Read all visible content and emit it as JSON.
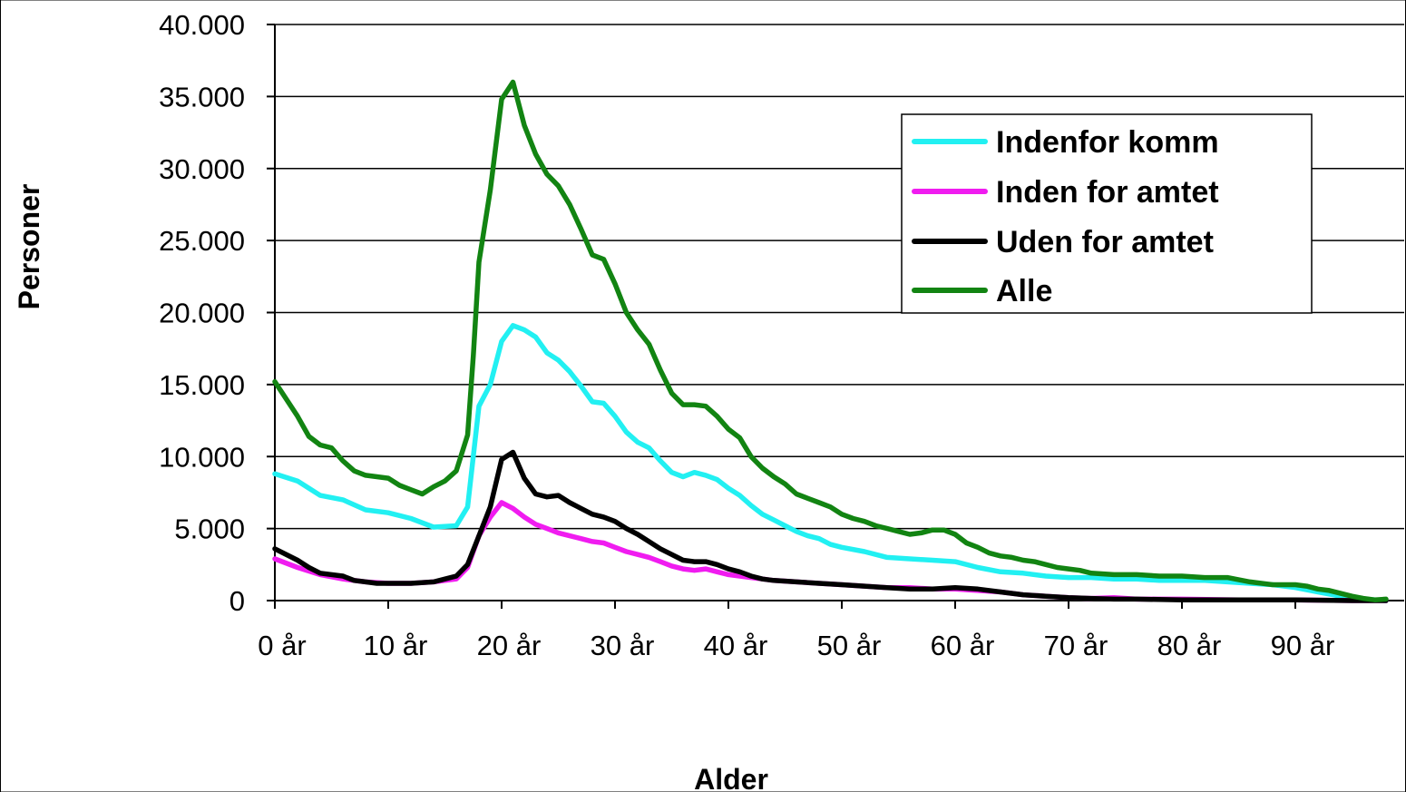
{
  "chart_data": {
    "type": "line",
    "xlabel": "Alder",
    "ylabel": "Personer",
    "ylim": [
      0,
      40000
    ],
    "xlim": [
      0,
      99
    ],
    "x_tick_values": [
      0,
      10,
      20,
      30,
      40,
      50,
      60,
      70,
      80,
      90
    ],
    "x_tick_labels": [
      "0 år",
      "10 år",
      "20 år",
      "30 år",
      "40 år",
      "50 år",
      "60 år",
      "70 år",
      "80 år",
      "90 år"
    ],
    "y_tick_values": [
      0,
      5000,
      10000,
      15000,
      20000,
      25000,
      30000,
      35000,
      40000
    ],
    "y_tick_labels": [
      "0",
      "5.000",
      "10.000",
      "15.000",
      "20.000",
      "25.000",
      "30.000",
      "35.000",
      "40.000"
    ],
    "grid": "horizontal",
    "legend_position": "top-right",
    "series": [
      {
        "name": "Indenfor komm",
        "color": "#22f0f2",
        "points": [
          [
            0,
            8800
          ],
          [
            2,
            8300
          ],
          [
            4,
            7300
          ],
          [
            6,
            7000
          ],
          [
            8,
            6300
          ],
          [
            10,
            6100
          ],
          [
            12,
            5700
          ],
          [
            14,
            5100
          ],
          [
            16,
            5200
          ],
          [
            17,
            6500
          ],
          [
            18,
            13500
          ],
          [
            19,
            15000
          ],
          [
            20,
            18000
          ],
          [
            21,
            19100
          ],
          [
            22,
            18800
          ],
          [
            23,
            18300
          ],
          [
            24,
            17200
          ],
          [
            25,
            16700
          ],
          [
            26,
            15900
          ],
          [
            27,
            14900
          ],
          [
            28,
            13800
          ],
          [
            29,
            13700
          ],
          [
            30,
            12800
          ],
          [
            31,
            11700
          ],
          [
            32,
            11000
          ],
          [
            33,
            10600
          ],
          [
            34,
            9700
          ],
          [
            35,
            8900
          ],
          [
            36,
            8600
          ],
          [
            37,
            8900
          ],
          [
            38,
            8700
          ],
          [
            39,
            8400
          ],
          [
            40,
            7800
          ],
          [
            41,
            7300
          ],
          [
            42,
            6600
          ],
          [
            43,
            6000
          ],
          [
            44,
            5600
          ],
          [
            45,
            5200
          ],
          [
            46,
            4800
          ],
          [
            47,
            4500
          ],
          [
            48,
            4300
          ],
          [
            49,
            3900
          ],
          [
            50,
            3700
          ],
          [
            52,
            3400
          ],
          [
            54,
            3000
          ],
          [
            56,
            2900
          ],
          [
            58,
            2800
          ],
          [
            60,
            2700
          ],
          [
            62,
            2300
          ],
          [
            64,
            2000
          ],
          [
            66,
            1900
          ],
          [
            68,
            1700
          ],
          [
            70,
            1600
          ],
          [
            72,
            1600
          ],
          [
            74,
            1500
          ],
          [
            76,
            1500
          ],
          [
            78,
            1400
          ],
          [
            80,
            1400
          ],
          [
            82,
            1400
          ],
          [
            84,
            1300
          ],
          [
            86,
            1200
          ],
          [
            88,
            1100
          ],
          [
            90,
            900
          ],
          [
            92,
            600
          ],
          [
            94,
            300
          ],
          [
            96,
            100
          ],
          [
            98,
            0
          ]
        ]
      },
      {
        "name": "Inden for amtet",
        "color": "#f01cf0",
        "points": [
          [
            0,
            2900
          ],
          [
            2,
            2300
          ],
          [
            4,
            1800
          ],
          [
            6,
            1500
          ],
          [
            8,
            1300
          ],
          [
            10,
            1200
          ],
          [
            12,
            1200
          ],
          [
            14,
            1300
          ],
          [
            16,
            1500
          ],
          [
            17,
            2300
          ],
          [
            18,
            4500
          ],
          [
            19,
            5800
          ],
          [
            20,
            6800
          ],
          [
            21,
            6400
          ],
          [
            22,
            5800
          ],
          [
            23,
            5300
          ],
          [
            24,
            5000
          ],
          [
            25,
            4700
          ],
          [
            26,
            4500
          ],
          [
            27,
            4300
          ],
          [
            28,
            4100
          ],
          [
            29,
            4000
          ],
          [
            30,
            3700
          ],
          [
            31,
            3400
          ],
          [
            32,
            3200
          ],
          [
            33,
            3000
          ],
          [
            34,
            2700
          ],
          [
            35,
            2400
          ],
          [
            36,
            2200
          ],
          [
            37,
            2100
          ],
          [
            38,
            2200
          ],
          [
            39,
            2000
          ],
          [
            40,
            1800
          ],
          [
            41,
            1700
          ],
          [
            42,
            1600
          ],
          [
            43,
            1500
          ],
          [
            44,
            1400
          ],
          [
            46,
            1300
          ],
          [
            48,
            1200
          ],
          [
            50,
            1100
          ],
          [
            52,
            1000
          ],
          [
            54,
            900
          ],
          [
            56,
            900
          ],
          [
            58,
            800
          ],
          [
            60,
            800
          ],
          [
            62,
            700
          ],
          [
            64,
            600
          ],
          [
            66,
            400
          ],
          [
            68,
            300
          ],
          [
            70,
            200
          ],
          [
            72,
            150
          ],
          [
            74,
            200
          ],
          [
            76,
            100
          ],
          [
            78,
            100
          ],
          [
            80,
            100
          ],
          [
            85,
            50
          ],
          [
            90,
            50
          ],
          [
            95,
            0
          ],
          [
            98,
            0
          ]
        ]
      },
      {
        "name": "Uden for amtet",
        "color": "#000000",
        "points": [
          [
            0,
            3600
          ],
          [
            2,
            2800
          ],
          [
            3,
            2300
          ],
          [
            4,
            1900
          ],
          [
            6,
            1700
          ],
          [
            7,
            1400
          ],
          [
            8,
            1300
          ],
          [
            9,
            1200
          ],
          [
            10,
            1200
          ],
          [
            12,
            1200
          ],
          [
            14,
            1300
          ],
          [
            16,
            1700
          ],
          [
            17,
            2500
          ],
          [
            18,
            4500
          ],
          [
            19,
            6500
          ],
          [
            20,
            9800
          ],
          [
            21,
            10300
          ],
          [
            22,
            8500
          ],
          [
            23,
            7400
          ],
          [
            24,
            7200
          ],
          [
            25,
            7300
          ],
          [
            26,
            6800
          ],
          [
            27,
            6400
          ],
          [
            28,
            6000
          ],
          [
            29,
            5800
          ],
          [
            30,
            5500
          ],
          [
            31,
            5000
          ],
          [
            32,
            4600
          ],
          [
            33,
            4100
          ],
          [
            34,
            3600
          ],
          [
            35,
            3200
          ],
          [
            36,
            2800
          ],
          [
            37,
            2700
          ],
          [
            38,
            2700
          ],
          [
            39,
            2500
          ],
          [
            40,
            2200
          ],
          [
            41,
            2000
          ],
          [
            42,
            1700
          ],
          [
            43,
            1500
          ],
          [
            44,
            1400
          ],
          [
            46,
            1300
          ],
          [
            48,
            1200
          ],
          [
            50,
            1100
          ],
          [
            52,
            1000
          ],
          [
            54,
            900
          ],
          [
            56,
            800
          ],
          [
            58,
            800
          ],
          [
            60,
            900
          ],
          [
            62,
            800
          ],
          [
            64,
            600
          ],
          [
            66,
            400
          ],
          [
            68,
            300
          ],
          [
            70,
            200
          ],
          [
            72,
            150
          ],
          [
            74,
            100
          ],
          [
            76,
            100
          ],
          [
            80,
            50
          ],
          [
            85,
            50
          ],
          [
            90,
            50
          ],
          [
            95,
            0
          ],
          [
            98,
            0
          ]
        ]
      },
      {
        "name": "Alle",
        "color": "#128412",
        "points": [
          [
            0,
            15200
          ],
          [
            1,
            14000
          ],
          [
            2,
            12800
          ],
          [
            3,
            11400
          ],
          [
            4,
            10800
          ],
          [
            5,
            10600
          ],
          [
            6,
            9700
          ],
          [
            7,
            9000
          ],
          [
            8,
            8700
          ],
          [
            9,
            8600
          ],
          [
            10,
            8500
          ],
          [
            11,
            8000
          ],
          [
            12,
            7700
          ],
          [
            13,
            7400
          ],
          [
            14,
            7900
          ],
          [
            15,
            8300
          ],
          [
            16,
            9000
          ],
          [
            17,
            11500
          ],
          [
            17.5,
            17000
          ],
          [
            18,
            23500
          ],
          [
            19,
            28500
          ],
          [
            20,
            34800
          ],
          [
            21,
            36000
          ],
          [
            22,
            33000
          ],
          [
            23,
            31000
          ],
          [
            24,
            29600
          ],
          [
            25,
            28800
          ],
          [
            26,
            27500
          ],
          [
            27,
            25800
          ],
          [
            28,
            24000
          ],
          [
            29,
            23700
          ],
          [
            30,
            22000
          ],
          [
            31,
            20000
          ],
          [
            32,
            18800
          ],
          [
            33,
            17800
          ],
          [
            34,
            16000
          ],
          [
            35,
            14400
          ],
          [
            36,
            13600
          ],
          [
            37,
            13600
          ],
          [
            38,
            13500
          ],
          [
            39,
            12800
          ],
          [
            40,
            11900
          ],
          [
            41,
            11300
          ],
          [
            42,
            10000
          ],
          [
            43,
            9200
          ],
          [
            44,
            8600
          ],
          [
            45,
            8100
          ],
          [
            46,
            7400
          ],
          [
            47,
            7100
          ],
          [
            48,
            6800
          ],
          [
            49,
            6500
          ],
          [
            50,
            6000
          ],
          [
            51,
            5700
          ],
          [
            52,
            5500
          ],
          [
            53,
            5200
          ],
          [
            54,
            5000
          ],
          [
            55,
            4800
          ],
          [
            56,
            4600
          ],
          [
            57,
            4700
          ],
          [
            58,
            4900
          ],
          [
            59,
            4900
          ],
          [
            60,
            4600
          ],
          [
            61,
            4000
          ],
          [
            62,
            3700
          ],
          [
            63,
            3300
          ],
          [
            64,
            3100
          ],
          [
            65,
            3000
          ],
          [
            66,
            2800
          ],
          [
            67,
            2700
          ],
          [
            68,
            2500
          ],
          [
            69,
            2300
          ],
          [
            70,
            2200
          ],
          [
            71,
            2100
          ],
          [
            72,
            1900
          ],
          [
            74,
            1800
          ],
          [
            76,
            1800
          ],
          [
            78,
            1700
          ],
          [
            80,
            1700
          ],
          [
            82,
            1600
          ],
          [
            84,
            1600
          ],
          [
            86,
            1300
          ],
          [
            88,
            1100
          ],
          [
            90,
            1100
          ],
          [
            91,
            1000
          ],
          [
            92,
            800
          ],
          [
            93,
            700
          ],
          [
            94,
            500
          ],
          [
            95,
            300
          ],
          [
            96,
            150
          ],
          [
            97,
            50
          ],
          [
            98,
            100
          ]
        ]
      }
    ]
  }
}
